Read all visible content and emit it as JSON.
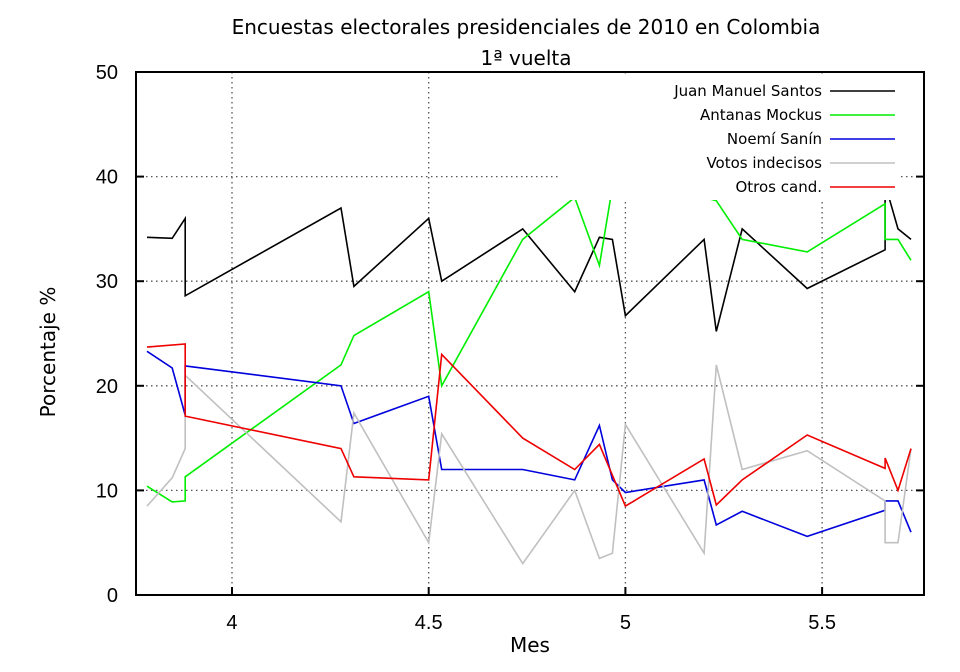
{
  "chart_data": {
    "type": "line",
    "title": "Encuestas electorales presidenciales de 2010 en Colombia",
    "subtitle": "1ª vuelta",
    "xlabel": "Mes",
    "ylabel": "Porcentaje %",
    "xlim": [
      3.756,
      5.759
    ],
    "ylim": [
      0,
      50
    ],
    "xticks": [
      4,
      4.5,
      5,
      5.5
    ],
    "xtick_labels": [
      "4",
      "4.5",
      "5",
      "5.5"
    ],
    "yticks": [
      0,
      10,
      20,
      30,
      40,
      50
    ],
    "ytick_labels": [
      "0",
      "10",
      "20",
      "30",
      "40",
      "50"
    ],
    "grid": true,
    "legend_position": "top-right",
    "series": [
      {
        "name": "Juan Manuel Santos",
        "color": "#000000",
        "points": [
          [
            3.784,
            34.2
          ],
          [
            3.848,
            34.1
          ],
          [
            3.881,
            36
          ],
          [
            3.881,
            28.6
          ],
          [
            4.277,
            37
          ],
          [
            4.31,
            29.5
          ],
          [
            4.5,
            36
          ],
          [
            4.533,
            30
          ],
          [
            4.739,
            35
          ],
          [
            4.871,
            29
          ],
          [
            4.934,
            34.2
          ],
          [
            4.967,
            34
          ],
          [
            5.0,
            26.7
          ],
          [
            5.2,
            34
          ],
          [
            5.231,
            25.2
          ],
          [
            5.297,
            35
          ],
          [
            5.462,
            29.3
          ],
          [
            5.66,
            33
          ],
          [
            5.66,
            39.3
          ],
          [
            5.693,
            35
          ],
          [
            5.726,
            34
          ]
        ]
      },
      {
        "name": "Antanas Mockus",
        "color": "#00ee00",
        "points": [
          [
            3.784,
            10.4
          ],
          [
            3.848,
            8.9
          ],
          [
            3.881,
            9
          ],
          [
            3.881,
            11.3
          ],
          [
            4.277,
            22
          ],
          [
            4.31,
            24.8
          ],
          [
            4.5,
            29
          ],
          [
            4.533,
            20
          ],
          [
            4.739,
            34
          ],
          [
            4.871,
            38
          ],
          [
            4.934,
            31.5
          ],
          [
            4.967,
            39
          ],
          [
            5.0,
            38.7
          ],
          [
            5.2,
            38
          ],
          [
            5.231,
            37.7
          ],
          [
            5.297,
            34
          ],
          [
            5.462,
            32.8
          ],
          [
            5.66,
            37.4
          ],
          [
            5.66,
            34
          ],
          [
            5.693,
            34
          ],
          [
            5.726,
            32
          ]
        ]
      },
      {
        "name": "Noemí Sanín",
        "color": "#0000dd",
        "points": [
          [
            3.784,
            23.3
          ],
          [
            3.848,
            21.7
          ],
          [
            3.881,
            17.2
          ],
          [
            3.881,
            21.9
          ],
          [
            4.277,
            20
          ],
          [
            4.31,
            16.4
          ],
          [
            4.5,
            19
          ],
          [
            4.533,
            12
          ],
          [
            4.739,
            12
          ],
          [
            4.871,
            11
          ],
          [
            4.934,
            16.2
          ],
          [
            4.967,
            11
          ],
          [
            5.0,
            9.8
          ],
          [
            5.2,
            11
          ],
          [
            5.231,
            6.7
          ],
          [
            5.297,
            8
          ],
          [
            5.462,
            5.6
          ],
          [
            5.66,
            8.1
          ],
          [
            5.66,
            9
          ],
          [
            5.693,
            9
          ],
          [
            5.726,
            6
          ]
        ]
      },
      {
        "name": "Votos indecisos",
        "color": "#c0c0c0",
        "points": [
          [
            3.784,
            8.5
          ],
          [
            3.848,
            11.2
          ],
          [
            3.881,
            14
          ],
          [
            3.881,
            21
          ],
          [
            4.277,
            7
          ],
          [
            4.31,
            17.4
          ],
          [
            4.5,
            5
          ],
          [
            4.533,
            15.4
          ],
          [
            4.739,
            3
          ],
          [
            4.871,
            10
          ],
          [
            4.934,
            3.5
          ],
          [
            4.967,
            4
          ],
          [
            5.0,
            16.3
          ],
          [
            5.2,
            4
          ],
          [
            5.231,
            22
          ],
          [
            5.297,
            12
          ],
          [
            5.462,
            13.8
          ],
          [
            5.66,
            9
          ],
          [
            5.66,
            5
          ],
          [
            5.693,
            5
          ],
          [
            5.726,
            14
          ]
        ]
      },
      {
        "name": "Otros cand.",
        "color": "#ee0000",
        "points": [
          [
            3.784,
            23.7
          ],
          [
            3.881,
            24
          ],
          [
            3.881,
            17.1
          ],
          [
            4.277,
            14
          ],
          [
            4.31,
            11.3
          ],
          [
            4.5,
            11
          ],
          [
            4.533,
            23
          ],
          [
            4.739,
            15
          ],
          [
            4.871,
            12
          ],
          [
            4.934,
            14.4
          ],
          [
            5.0,
            8.5
          ],
          [
            5.2,
            13
          ],
          [
            5.231,
            8.6
          ],
          [
            5.297,
            11
          ],
          [
            5.462,
            15.3
          ],
          [
            5.66,
            12.1
          ],
          [
            5.66,
            13.1
          ],
          [
            5.693,
            10
          ],
          [
            5.726,
            14
          ]
        ]
      }
    ]
  }
}
